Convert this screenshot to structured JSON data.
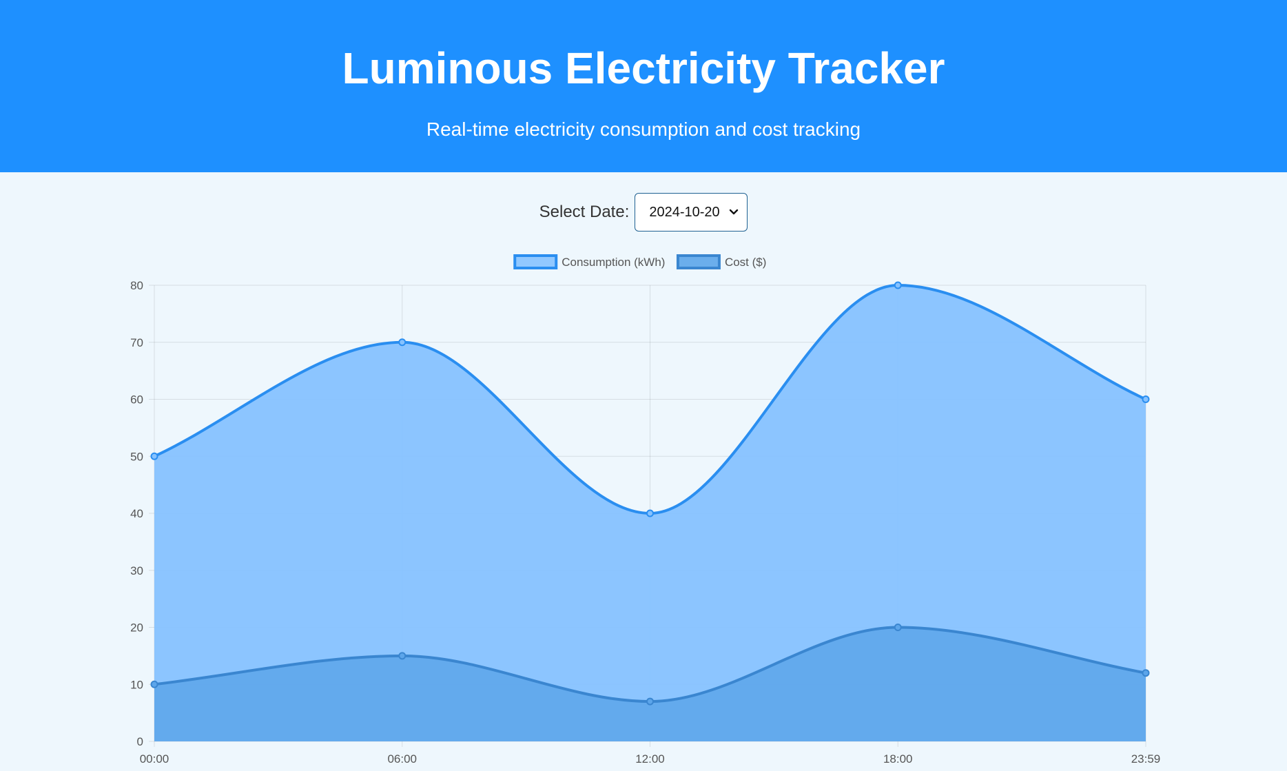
{
  "header": {
    "title": "Luminous Electricity Tracker",
    "subtitle": "Real-time electricity consumption and cost tracking"
  },
  "date_picker": {
    "label": "Select Date:",
    "selected": "2024-10-20"
  },
  "colors": {
    "header_bg": "#1e90ff",
    "page_bg": "#eef7fd",
    "consumption_line": "#2a8ef0",
    "consumption_fill": "#86c2ff",
    "cost_line": "#3a86d0",
    "cost_fill": "#5ca5ea"
  },
  "chart_data": {
    "type": "area",
    "title": "",
    "xlabel": "",
    "ylabel": "",
    "categories": [
      "00:00",
      "06:00",
      "12:00",
      "18:00",
      "23:59"
    ],
    "ylim": [
      0,
      80
    ],
    "yticks": [
      0,
      10,
      20,
      30,
      40,
      50,
      60,
      70,
      80
    ],
    "grid": true,
    "legend": "top-center",
    "series": [
      {
        "name": "Consumption (kWh)",
        "values": [
          50,
          70,
          40,
          80,
          60
        ],
        "color": "#2a8ef0",
        "fill": "#86c2ff"
      },
      {
        "name": "Cost ($)",
        "values": [
          10,
          15,
          7,
          20,
          12
        ],
        "color": "#3a86d0",
        "fill": "#5ca5ea"
      }
    ]
  }
}
